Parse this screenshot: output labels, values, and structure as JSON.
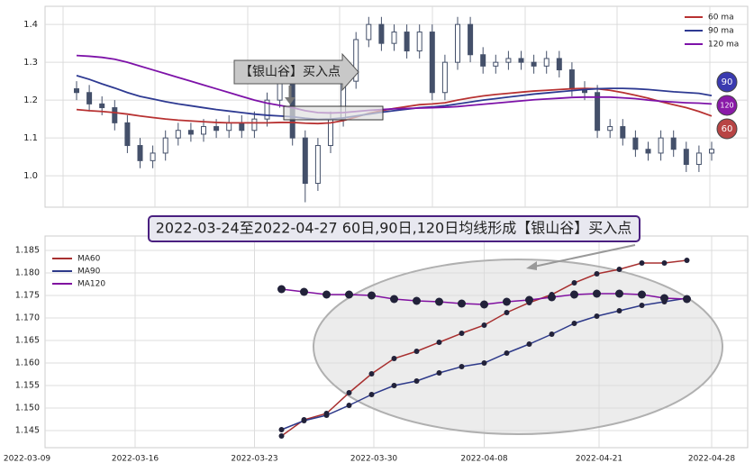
{
  "banner": "2022-03-24至2022-04-27 60日,90日,120日均线形成【银山谷】买入点",
  "chart_data": [
    {
      "type": "candlestick",
      "ylim": [
        0.917,
        1.448
      ],
      "yticks": [
        {
          "value": 1,
          "label": "1.0"
        },
        1.1,
        1.2,
        1.3,
        1.4
      ],
      "grid": true,
      "legend": "upper right",
      "up_color": "#ffffff",
      "down_color": "#44506a",
      "open": [
        1.23,
        1.22,
        1.19,
        1.18,
        1.14,
        1.08,
        1.04,
        1.06,
        1.1,
        1.12,
        1.11,
        1.13,
        1.12,
        1.14,
        1.12,
        1.15,
        1.2,
        1.25,
        1.1,
        0.98,
        1.08,
        1.15,
        1.25,
        1.36,
        1.4,
        1.35,
        1.38,
        1.33,
        1.38,
        1.22,
        1.3,
        1.4,
        1.32,
        1.29,
        1.3,
        1.31,
        1.3,
        1.29,
        1.31,
        1.28,
        1.23,
        1.22,
        1.12,
        1.13,
        1.1,
        1.07,
        1.06,
        1.1,
        1.07,
        1.03,
        1.06
      ],
      "high": [
        1.25,
        1.24,
        1.21,
        1.2,
        1.16,
        1.1,
        1.08,
        1.12,
        1.14,
        1.14,
        1.15,
        1.15,
        1.16,
        1.16,
        1.17,
        1.22,
        1.27,
        1.27,
        1.12,
        1.1,
        1.17,
        1.27,
        1.38,
        1.42,
        1.42,
        1.4,
        1.4,
        1.4,
        1.4,
        1.32,
        1.42,
        1.42,
        1.34,
        1.32,
        1.33,
        1.33,
        1.32,
        1.33,
        1.33,
        1.3,
        1.25,
        1.24,
        1.15,
        1.15,
        1.12,
        1.09,
        1.12,
        1.12,
        1.09,
        1.08,
        1.09
      ],
      "low": [
        1.2,
        1.17,
        1.16,
        1.12,
        1.06,
        1.02,
        1.02,
        1.04,
        1.08,
        1.09,
        1.09,
        1.1,
        1.1,
        1.1,
        1.1,
        1.13,
        1.18,
        1.08,
        0.93,
        0.96,
        1.06,
        1.13,
        1.23,
        1.34,
        1.33,
        1.33,
        1.31,
        1.31,
        1.2,
        1.2,
        1.28,
        1.3,
        1.27,
        1.27,
        1.28,
        1.28,
        1.27,
        1.27,
        1.26,
        1.21,
        1.2,
        1.1,
        1.1,
        1.08,
        1.05,
        1.04,
        1.04,
        1.05,
        1.01,
        1.01,
        1.04
      ],
      "close": [
        1.22,
        1.19,
        1.18,
        1.14,
        1.08,
        1.04,
        1.06,
        1.1,
        1.12,
        1.11,
        1.13,
        1.12,
        1.14,
        1.12,
        1.15,
        1.2,
        1.25,
        1.1,
        0.98,
        1.08,
        1.15,
        1.25,
        1.36,
        1.4,
        1.35,
        1.38,
        1.33,
        1.38,
        1.22,
        1.3,
        1.4,
        1.32,
        1.29,
        1.3,
        1.31,
        1.3,
        1.29,
        1.31,
        1.28,
        1.23,
        1.22,
        1.12,
        1.13,
        1.1,
        1.07,
        1.06,
        1.1,
        1.07,
        1.03,
        1.06,
        1.07
      ],
      "series": [
        {
          "name": "60 ma",
          "color": "#b83232",
          "values": [
            1.175,
            1.172,
            1.17,
            1.167,
            1.163,
            1.158,
            1.154,
            1.15,
            1.147,
            1.145,
            1.143,
            1.141,
            1.14,
            1.14,
            1.14,
            1.14,
            1.141,
            1.141,
            1.139,
            1.138,
            1.14,
            1.146,
            1.155,
            1.165,
            1.172,
            1.178,
            1.183,
            1.188,
            1.19,
            1.193,
            1.2,
            1.206,
            1.211,
            1.215,
            1.218,
            1.221,
            1.224,
            1.226,
            1.228,
            1.23,
            1.231,
            1.23,
            1.226,
            1.22,
            1.213,
            1.205,
            1.196,
            1.188,
            1.18,
            1.17,
            1.158
          ]
        },
        {
          "name": "90 ma",
          "color": "#2e3a92",
          "values": [
            1.265,
            1.255,
            1.243,
            1.232,
            1.22,
            1.21,
            1.203,
            1.196,
            1.19,
            1.185,
            1.18,
            1.175,
            1.171,
            1.167,
            1.163,
            1.16,
            1.158,
            1.156,
            1.152,
            1.149,
            1.15,
            1.153,
            1.158,
            1.163,
            1.168,
            1.172,
            1.176,
            1.18,
            1.182,
            1.185,
            1.19,
            1.195,
            1.2,
            1.204,
            1.208,
            1.212,
            1.216,
            1.219,
            1.222,
            1.225,
            1.228,
            1.23,
            1.231,
            1.231,
            1.23,
            1.228,
            1.225,
            1.222,
            1.22,
            1.218,
            1.212
          ]
        },
        {
          "name": "120 ma",
          "color": "#7d12a8",
          "values": [
            1.318,
            1.316,
            1.313,
            1.308,
            1.3,
            1.29,
            1.28,
            1.27,
            1.26,
            1.25,
            1.24,
            1.23,
            1.22,
            1.21,
            1.2,
            1.192,
            1.186,
            1.18,
            1.172,
            1.167,
            1.166,
            1.167,
            1.17,
            1.173,
            1.175,
            1.177,
            1.178,
            1.179,
            1.18,
            1.181,
            1.183,
            1.186,
            1.189,
            1.192,
            1.195,
            1.198,
            1.201,
            1.203,
            1.205,
            1.207,
            1.208,
            1.208,
            1.208,
            1.206,
            1.204,
            1.2,
            1.197,
            1.195,
            1.193,
            1.192,
            1.19
          ]
        }
      ],
      "annotation": "【银山谷】买入点",
      "badges": [
        {
          "label": "90",
          "color": "#3a3ab0"
        },
        {
          "label": "120",
          "color": "#8a1aa8"
        },
        {
          "label": "60",
          "color": "#b84444"
        }
      ]
    },
    {
      "type": "line",
      "x": [
        0,
        1,
        2,
        3,
        4,
        5,
        6,
        7,
        8,
        9,
        10,
        11,
        12,
        13,
        14,
        15,
        16,
        17,
        18
      ],
      "xlim": [
        -10.5,
        20.7
      ],
      "xticks": [
        {
          "value": -11.3,
          "label": "2022-03-09"
        },
        {
          "value": -6.5,
          "label": "2022-03-16"
        },
        {
          "value": -1.2,
          "label": "2022-03-23"
        },
        {
          "value": 4.1,
          "label": "2022-03-30"
        },
        {
          "value": 9,
          "label": "2022-04-08"
        },
        {
          "value": 14.1,
          "label": "2022-04-21"
        },
        {
          "value": 19.1,
          "label": "2022-04-28"
        }
      ],
      "ylim": [
        1.1412,
        1.1882
      ],
      "yticks": [
        1.145,
        {
          "value": 1.15,
          "label": "1.150"
        },
        1.155,
        {
          "value": 1.16,
          "label": "1.160"
        },
        1.165,
        {
          "value": 1.17,
          "label": "1.170"
        },
        1.175,
        {
          "value": 1.18,
          "label": "1.180"
        },
        1.185
      ],
      "grid": true,
      "legend": "upper left",
      "series": [
        {
          "name": "MA60",
          "color": "#a83030",
          "values": [
            1.1438,
            1.1474,
            1.1488,
            1.1534,
            1.1576,
            1.161,
            1.1626,
            1.1646,
            1.1666,
            1.1684,
            1.1712,
            1.1734,
            1.1752,
            1.1778,
            1.1798,
            1.1808,
            1.1822,
            1.1822,
            1.1828
          ]
        },
        {
          "name": "MA90",
          "color": "#2e3a8a",
          "values": [
            1.1452,
            1.1472,
            1.1484,
            1.1506,
            1.153,
            1.155,
            1.156,
            1.1578,
            1.1592,
            1.16,
            1.1622,
            1.1642,
            1.1664,
            1.1688,
            1.1704,
            1.1716,
            1.1728,
            1.1736,
            1.1744
          ]
        },
        {
          "name": "MA120",
          "color": "#8010a0",
          "values": [
            1.1764,
            1.1758,
            1.1752,
            1.1752,
            1.175,
            1.1742,
            1.1738,
            1.1736,
            1.1732,
            1.173,
            1.1736,
            1.174,
            1.1746,
            1.1752,
            1.1754,
            1.1754,
            1.1752,
            1.1744,
            1.1742
          ]
        }
      ]
    }
  ]
}
